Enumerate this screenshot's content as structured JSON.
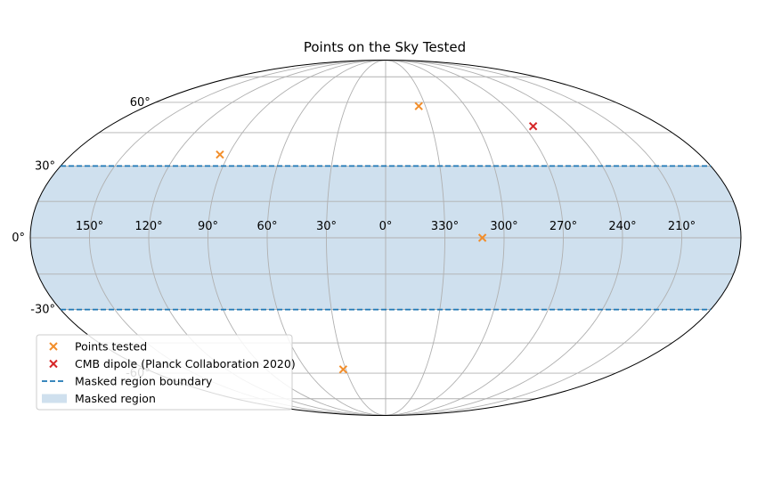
{
  "chart_data": {
    "type": "scatter",
    "projection": "mollweide",
    "title": "Points on the Sky Tested",
    "grid": true,
    "legend_placement": "lower-left",
    "longitude_ticks": [
      {
        "value": 150,
        "label": "150°"
      },
      {
        "value": 120,
        "label": "120°"
      },
      {
        "value": 90,
        "label": "90°"
      },
      {
        "value": 60,
        "label": "60°"
      },
      {
        "value": 30,
        "label": "30°"
      },
      {
        "value": 0,
        "label": "0°"
      },
      {
        "value": -30,
        "label": "330°"
      },
      {
        "value": -60,
        "label": "300°"
      },
      {
        "value": -90,
        "label": "270°"
      },
      {
        "value": -120,
        "label": "240°"
      },
      {
        "value": -150,
        "label": "210°"
      }
    ],
    "latitude_ticks": [
      {
        "value": 60,
        "label": "60°"
      },
      {
        "value": 30,
        "label": "30°"
      },
      {
        "value": 0,
        "label": "0°"
      },
      {
        "value": -30,
        "label": "-30°"
      },
      {
        "value": -60,
        "label": "-60°"
      }
    ],
    "latitude_gridlines": [
      -75,
      -60,
      -45,
      -30,
      -15,
      0,
      15,
      30,
      45,
      60,
      75
    ],
    "masked_region": {
      "lat_min": -30,
      "lat_max": 30,
      "color": "#cfe0ee",
      "boundary_color": "#1f77b4"
    },
    "series": [
      {
        "name": "Points tested",
        "marker": "x",
        "color": "#f28e2b",
        "points": [
          {
            "lon": 95,
            "lat": 35
          },
          {
            "lon": -25,
            "lat": 58
          },
          {
            "lon": -49,
            "lat": 0
          },
          {
            "lon": 32,
            "lat": -58
          }
        ]
      },
      {
        "name": "CMB dipole (Planck Collaboration 2020)",
        "marker": "x",
        "color": "#d62728",
        "points": [
          {
            "lon": -96,
            "lat": 48
          }
        ]
      }
    ],
    "legend": [
      {
        "key": "points",
        "label": "Points tested",
        "kind": "x",
        "color": "#f28e2b"
      },
      {
        "key": "dipole",
        "label": "CMB dipole (Planck Collaboration 2020)",
        "kind": "x",
        "color": "#d62728"
      },
      {
        "key": "boundary",
        "label": "Masked region boundary",
        "kind": "dashed",
        "color": "#1f77b4"
      },
      {
        "key": "region",
        "label": "Masked region",
        "kind": "patch",
        "color": "#cfe0ee"
      }
    ]
  }
}
